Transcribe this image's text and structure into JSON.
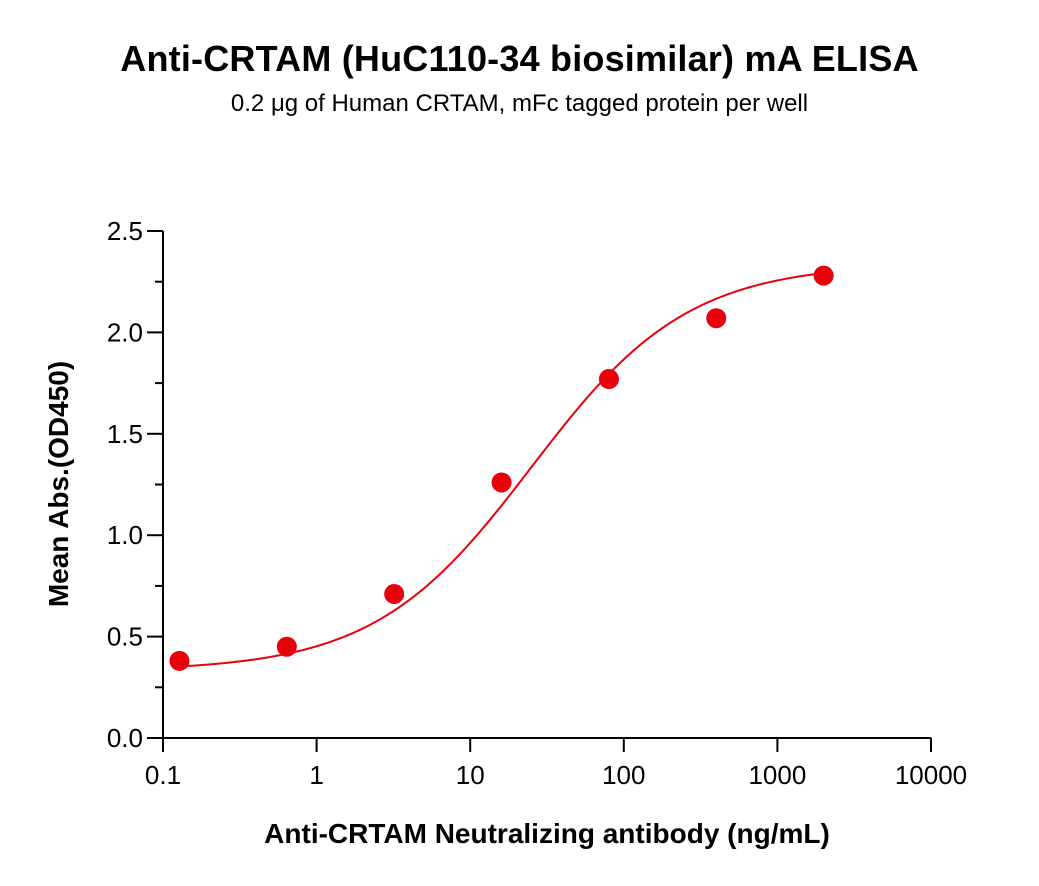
{
  "chart_data": {
    "type": "scatter",
    "title": "Anti-CRTAM (HuC110-34 biosimilar) mA ELISA",
    "subtitle": "0.2 μg of Human CRTAM, mFc tagged protein per well",
    "xlabel": "Anti-CRTAM Neutralizing antibody (ng/mL)",
    "ylabel": "Mean Abs.(OD450)",
    "x_scale": "log",
    "xlim": [
      0.1,
      10000
    ],
    "ylim": [
      0.0,
      2.5
    ],
    "x_ticks": [
      "0.1",
      "1",
      "10",
      "100",
      "1000",
      "10000"
    ],
    "y_ticks": [
      "0.0",
      "0.5",
      "1.0",
      "1.5",
      "2.0",
      "2.5"
    ],
    "grid": false,
    "point_color": "#e8000b",
    "curve_color": "#e8000b",
    "series": [
      {
        "x": [
          0.128,
          0.64,
          3.2,
          16,
          80,
          400,
          2000
        ],
        "y": [
          0.38,
          0.45,
          0.71,
          1.26,
          1.77,
          2.07,
          2.28
        ]
      }
    ],
    "fit_curve": {
      "model": "4PL",
      "bottom": 0.33,
      "top": 2.34,
      "ec50": 25,
      "hill": 0.85
    }
  }
}
